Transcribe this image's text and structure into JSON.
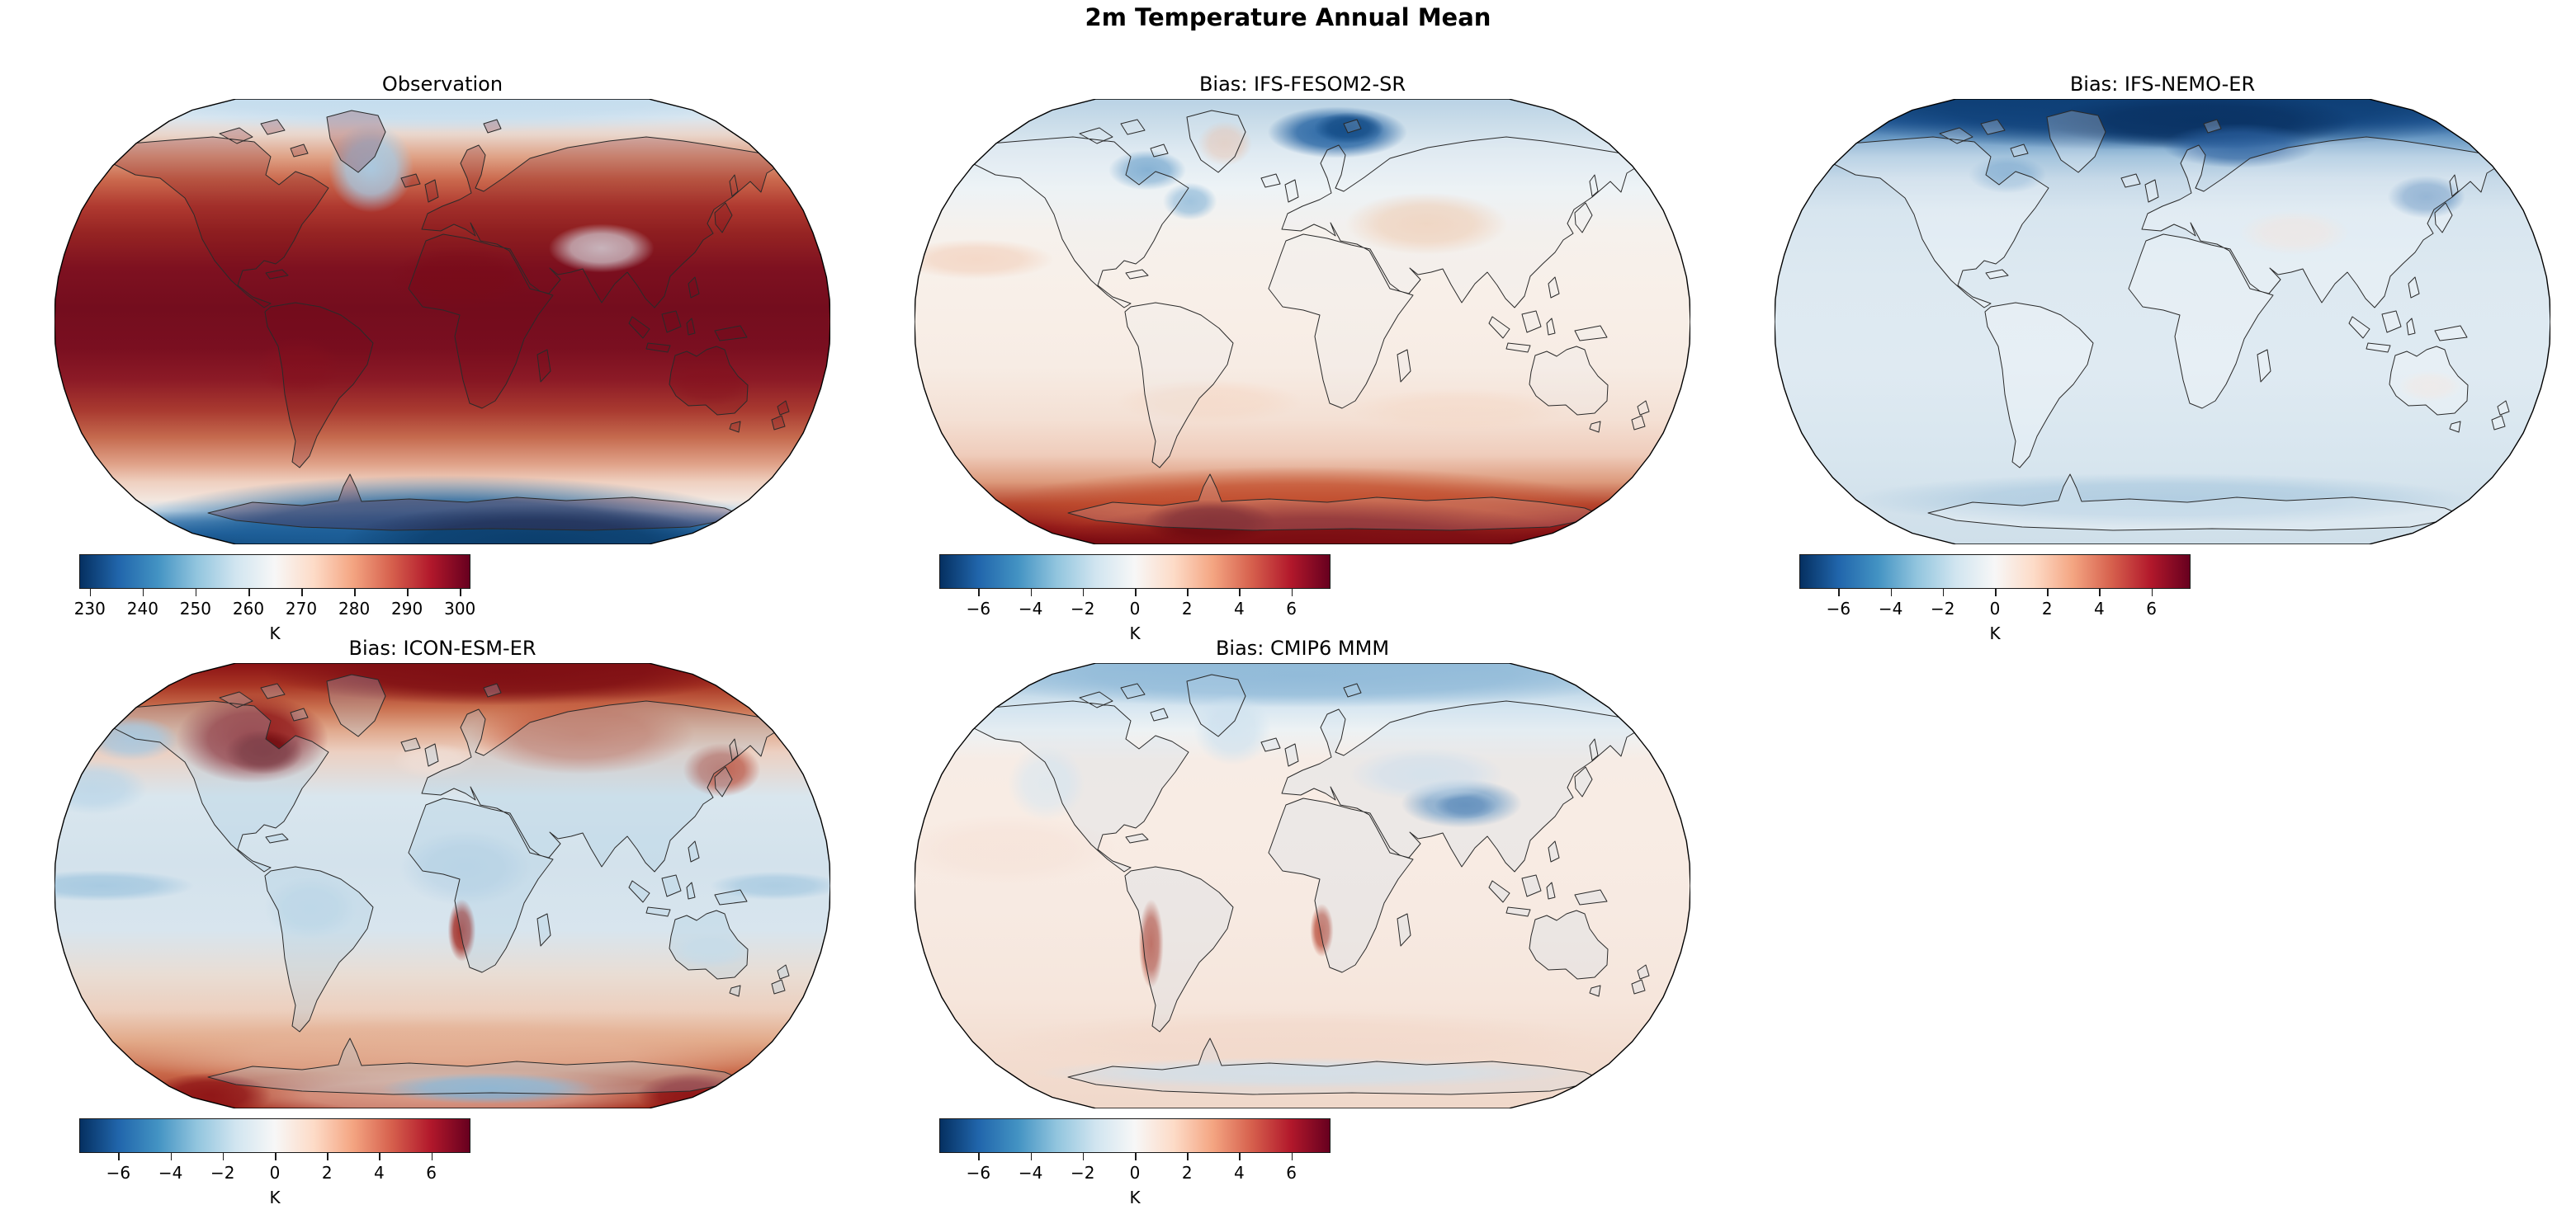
{
  "figure": {
    "title": "2m Temperature Annual Mean",
    "background_color": "#ffffff",
    "text_color": "#000000"
  },
  "colormap": {
    "name": "RdBu_r",
    "stops": [
      "#053061",
      "#2166ac",
      "#4393c3",
      "#92c5de",
      "#d1e5f0",
      "#f7f7f7",
      "#fddbc7",
      "#f4a582",
      "#d6604d",
      "#b2182b",
      "#67001f"
    ]
  },
  "chart_data": [
    {
      "type": "heatmap",
      "title": "Observation",
      "projection": "Robinson",
      "variable": "2m temperature annual mean",
      "units": "K",
      "row": 0,
      "col": 0,
      "colorbar": {
        "label": "K",
        "ticks": [
          230,
          240,
          250,
          260,
          270,
          280,
          290,
          300
        ],
        "tick_labels": [
          "230",
          "240",
          "250",
          "260",
          "270",
          "280",
          "290",
          "300"
        ],
        "range": [
          228,
          302
        ]
      },
      "pattern": "280-300 K tropics and subtropics (darkest over Sahara, Amazon, Australia), ~260-270 K high northern latitudes, cold Greenland interior and Tibetan Plateau, deep-blue Antarctica below 240 K",
      "shading": {
        "gradient": [
          [
            0,
            "#c9dfee"
          ],
          [
            0.04,
            "#dce8f1"
          ],
          [
            0.08,
            "#e9d6cc"
          ],
          [
            0.13,
            "#dfa286"
          ],
          [
            0.18,
            "#cb6a4e"
          ],
          [
            0.24,
            "#b03a30"
          ],
          [
            0.3,
            "#962423"
          ],
          [
            0.38,
            "#7e1120"
          ],
          [
            0.47,
            "#740d1e"
          ],
          [
            0.56,
            "#7a0f20"
          ],
          [
            0.63,
            "#8c1a26"
          ],
          [
            0.7,
            "#a93a30"
          ],
          [
            0.76,
            "#c56a4e"
          ],
          [
            0.82,
            "#e0a289"
          ],
          [
            0.86,
            "#efd0c0"
          ],
          [
            0.9,
            "#f3e6de"
          ],
          [
            0.925,
            "#cfe0ec"
          ],
          [
            0.95,
            "#5f93c0"
          ],
          [
            0.975,
            "#24629e"
          ],
          [
            1,
            "#0b3a68"
          ]
        ],
        "land_tint": [
          "#700818",
          0.22
        ],
        "blobs": [
          [
            0.408,
            0.155,
            0.055,
            0.1,
            "#a8cbe4",
            0.95
          ],
          [
            0.705,
            0.335,
            0.068,
            0.055,
            "#e4edf3",
            0.95
          ],
          [
            0.525,
            0.4,
            0.095,
            0.07,
            "#7a0a18",
            0.45
          ],
          [
            0.315,
            0.6,
            0.055,
            0.065,
            "#8c1220",
            0.4
          ],
          [
            0.845,
            0.64,
            0.055,
            0.05,
            "#8c1220",
            0.35
          ],
          [
            0.5,
            0.0,
            0.46,
            0.075,
            "#c3dcee",
            0.85
          ],
          [
            0.5,
            0.975,
            0.43,
            0.13,
            "#1c5e97",
            0.95
          ],
          [
            0.62,
            0.995,
            0.25,
            0.085,
            "#0b3d6b",
            0.95
          ]
        ]
      }
    },
    {
      "type": "heatmap",
      "title": "Bias: IFS-FESOM2-SR",
      "projection": "Robinson",
      "variable": "2m temperature bias vs observation",
      "units": "K",
      "row": 0,
      "col": 1,
      "colorbar": {
        "label": "K",
        "ticks": [
          -6,
          -4,
          -2,
          0,
          2,
          4,
          6
        ],
        "tick_labels": [
          "−6",
          "−4",
          "−2",
          "0",
          "2",
          "4",
          "6"
        ],
        "range": [
          -7.5,
          7.5
        ]
      },
      "pattern": "near-zero bias over most oceans and land, cold bias (-4 to -7 K) over Barents/Kara Seas and Hudson Bay, weak warm bias over central Asia and subtropical oceans, strong warm bias (+5 to +7 K) over the Southern Ocean and Antarctica",
      "shading": {
        "gradient": [
          [
            0,
            "#b9d2e5"
          ],
          [
            0.06,
            "#ccdeea"
          ],
          [
            0.12,
            "#dfeaf2"
          ],
          [
            0.2,
            "#edf3f6"
          ],
          [
            0.3,
            "#f6f1ec"
          ],
          [
            0.45,
            "#f8efe8"
          ],
          [
            0.6,
            "#f7ece4"
          ],
          [
            0.72,
            "#f4e0d4"
          ],
          [
            0.8,
            "#efccbb"
          ],
          [
            0.86,
            "#dd9a7c"
          ],
          [
            0.91,
            "#b5442c"
          ],
          [
            0.96,
            "#8c1216"
          ],
          [
            1,
            "#7a0c12"
          ]
        ],
        "land_tint": [
          "#e8f0f6",
          0.18
        ],
        "blobs": [
          [
            0.545,
            0.075,
            0.09,
            0.058,
            "#1f5fa0",
            0.95
          ],
          [
            0.56,
            0.065,
            0.045,
            0.035,
            "#134b85",
            0.9
          ],
          [
            0.3,
            0.16,
            0.05,
            0.045,
            "#6fa3cc",
            0.8
          ],
          [
            0.355,
            0.23,
            0.035,
            0.042,
            "#8db8d8",
            0.8
          ],
          [
            0.4,
            0.1,
            0.035,
            0.05,
            "#e8b79c",
            0.55
          ],
          [
            0.66,
            0.28,
            0.105,
            0.07,
            "#f0c4a4",
            0.7
          ],
          [
            0.08,
            0.36,
            0.1,
            0.045,
            "#f3d3c0",
            0.8
          ],
          [
            0.38,
            0.68,
            0.12,
            0.05,
            "#f5d8c6",
            0.65
          ],
          [
            0.7,
            0.7,
            0.14,
            0.05,
            "#f5d8c6",
            0.55
          ],
          [
            0.5,
            0.92,
            0.4,
            0.095,
            "#c4502f",
            0.85
          ],
          [
            0.52,
            1.0,
            0.34,
            0.1,
            "#7a0c12",
            1.0
          ],
          [
            0.38,
            0.95,
            0.085,
            0.05,
            "#6d0a10",
            0.9
          ]
        ]
      }
    },
    {
      "type": "heatmap",
      "title": "Bias: IFS-NEMO-ER",
      "projection": "Robinson",
      "variable": "2m temperature bias vs observation",
      "units": "K",
      "row": 0,
      "col": 2,
      "colorbar": {
        "label": "K",
        "ticks": [
          -6,
          -4,
          -2,
          0,
          2,
          4,
          6
        ],
        "tick_labels": [
          "−6",
          "−4",
          "−2",
          "0",
          "2",
          "4",
          "6"
        ],
        "range": [
          -7.5,
          7.5
        ]
      },
      "pattern": "weak cold bias (-1 to -2 K) nearly everywhere, strong cold bias (below -6 K) across the entire Arctic, slightly stronger blue over northern continents, faint warm speckles over central Asia and Australia",
      "shading": {
        "gradient": [
          [
            0,
            "#10406f"
          ],
          [
            0.05,
            "#2a62a0"
          ],
          [
            0.09,
            "#6d9cc6"
          ],
          [
            0.13,
            "#a4c4dd"
          ],
          [
            0.18,
            "#c6d9e8"
          ],
          [
            0.25,
            "#d7e5ef"
          ],
          [
            0.4,
            "#dde9f1"
          ],
          [
            0.6,
            "#dfeaf2"
          ],
          [
            0.8,
            "#d8e6ef"
          ],
          [
            0.9,
            "#d3e2ec"
          ],
          [
            1,
            "#cfdfea"
          ]
        ],
        "land_tint": [
          "#ffffff",
          0.25
        ],
        "blobs": [
          [
            0.5,
            0.02,
            0.47,
            0.095,
            "#0e3f77",
            1.0
          ],
          [
            0.55,
            0.05,
            0.2,
            0.062,
            "#0a3263",
            0.95
          ],
          [
            0.6,
            0.105,
            0.1,
            0.05,
            "#2a5f9e",
            0.8
          ],
          [
            0.84,
            0.22,
            0.05,
            0.048,
            "#4d82b8",
            0.7
          ],
          [
            0.3,
            0.17,
            0.05,
            0.042,
            "#7fabd0",
            0.7
          ],
          [
            0.67,
            0.3,
            0.07,
            0.05,
            "#f0dcd2",
            0.55
          ],
          [
            0.845,
            0.645,
            0.042,
            0.035,
            "#f2e0d6",
            0.5
          ],
          [
            0.5,
            0.9,
            0.4,
            0.06,
            "#9cc0da",
            0.6
          ]
        ]
      }
    },
    {
      "type": "heatmap",
      "title": "Bias: ICON-ESM-ER",
      "projection": "Robinson",
      "variable": "2m temperature bias vs observation",
      "units": "K",
      "row": 1,
      "col": 0,
      "colorbar": {
        "label": "K",
        "ticks": [
          -6,
          -4,
          -2,
          0,
          2,
          4,
          6
        ],
        "tick_labels": [
          "−6",
          "−4",
          "−2",
          "0",
          "2",
          "4",
          "6"
        ],
        "range": [
          -7.5,
          7.5
        ]
      },
      "pattern": "strong warm bias (+5 to +7 K) over northern Canada, Greenland Sea and Siberian Arctic, warm Southern Ocean ring and Antarctic coast, cold bias over tropical land (Africa, South America, Australia), equatorial Pacific and North Pacific, dark-red coastal streak off southwestern Africa",
      "shading": {
        "gradient": [
          [
            0,
            "#8a1114"
          ],
          [
            0.05,
            "#a83524"
          ],
          [
            0.1,
            "#c96f4e"
          ],
          [
            0.15,
            "#e0a88c"
          ],
          [
            0.2,
            "#ecd0c2"
          ],
          [
            0.3,
            "#d9e6ee"
          ],
          [
            0.45,
            "#d3e2ec"
          ],
          [
            0.6,
            "#d8e5ee"
          ],
          [
            0.7,
            "#e9ddd4"
          ],
          [
            0.78,
            "#eccfbe"
          ],
          [
            0.85,
            "#e2a988"
          ],
          [
            0.92,
            "#c9694a"
          ],
          [
            1,
            "#a32b1d"
          ]
        ],
        "land_tint": [
          "#aacde4",
          0.28
        ],
        "blobs": [
          [
            0.58,
            0.02,
            0.31,
            0.075,
            "#7e0f14",
            1.0
          ],
          [
            0.255,
            0.17,
            0.098,
            0.1,
            "#8c1215",
            0.95
          ],
          [
            0.27,
            0.2,
            0.05,
            0.05,
            "#6d0a0e",
            0.9
          ],
          [
            0.1,
            0.17,
            0.06,
            0.05,
            "#a7c9e2",
            0.9
          ],
          [
            0.05,
            0.28,
            0.07,
            0.06,
            "#b9d5e8",
            0.8
          ],
          [
            0.68,
            0.16,
            0.145,
            0.09,
            "#c4563a",
            0.7
          ],
          [
            0.86,
            0.24,
            0.05,
            0.06,
            "#b23c28",
            0.75
          ],
          [
            0.49,
            0.22,
            0.055,
            0.04,
            "#f0e0d8",
            0.7
          ],
          [
            0.53,
            0.46,
            0.085,
            0.085,
            "#b9d3e6",
            0.75
          ],
          [
            0.33,
            0.55,
            0.06,
            0.07,
            "#c2dae9",
            0.75
          ],
          [
            0.06,
            0.5,
            0.12,
            0.035,
            "#9dc4de",
            0.8
          ],
          [
            0.93,
            0.5,
            0.085,
            0.032,
            "#9dc4de",
            0.7
          ],
          [
            0.525,
            0.6,
            0.018,
            0.07,
            "#9e1f16",
            0.9
          ],
          [
            0.845,
            0.645,
            0.052,
            0.04,
            "#cfe2ee",
            0.7
          ],
          [
            0.5,
            0.88,
            0.42,
            0.08,
            "#e5b49a",
            0.8
          ],
          [
            0.5,
            0.97,
            0.3,
            0.06,
            "#edc6b2",
            0.7
          ],
          [
            0.56,
            0.955,
            0.14,
            0.035,
            "#7fb0d4",
            0.9
          ],
          [
            0.2,
            0.97,
            0.08,
            0.05,
            "#8c1215",
            0.9
          ],
          [
            0.82,
            0.97,
            0.07,
            0.05,
            "#8c1215",
            0.9
          ]
        ]
      }
    },
    {
      "type": "heatmap",
      "title": "Bias: CMIP6 MMM",
      "projection": "Robinson",
      "variable": "2m temperature bias vs observation",
      "units": "K",
      "row": 1,
      "col": 1,
      "colorbar": {
        "label": "K",
        "ticks": [
          -6,
          -4,
          -2,
          0,
          2,
          4,
          6
        ],
        "tick_labels": [
          "−6",
          "−4",
          "−2",
          "0",
          "2",
          "4",
          "6"
        ],
        "range": [
          -7.5,
          7.5
        ]
      },
      "pattern": "small biases overall: weak warm bias over most oceans, mixed speckled land biases, cold bias over the Arctic, Greenland and especially the Tibetan Plateau, warm streaks along the Andes and southwestern African coast, light warm bias over the Southern Ocean",
      "shading": {
        "gradient": [
          [
            0,
            "#9dc2dc"
          ],
          [
            0.05,
            "#bad4e6"
          ],
          [
            0.1,
            "#d8e7f1"
          ],
          [
            0.15,
            "#edf2f4"
          ],
          [
            0.22,
            "#f7ece5"
          ],
          [
            0.35,
            "#f8ece4"
          ],
          [
            0.55,
            "#f7eae2"
          ],
          [
            0.75,
            "#f6e6dc"
          ],
          [
            0.88,
            "#f3ddd0"
          ],
          [
            1,
            "#f0d8ca"
          ]
        ],
        "land_tint": [
          "#c6dcec",
          0.22
        ],
        "blobs": [
          [
            0.5,
            0.03,
            0.46,
            0.07,
            "#8fb9d8",
            0.9
          ],
          [
            0.41,
            0.15,
            0.05,
            0.08,
            "#cfe2ef",
            0.8
          ],
          [
            0.705,
            0.315,
            0.078,
            0.055,
            "#6796c2",
            0.9
          ],
          [
            0.71,
            0.32,
            0.04,
            0.03,
            "#4a7cb0",
            0.9
          ],
          [
            0.66,
            0.25,
            0.1,
            0.06,
            "#cfe0ee",
            0.7
          ],
          [
            0.17,
            0.27,
            0.05,
            0.085,
            "#d8e7f1",
            0.7
          ],
          [
            0.12,
            0.42,
            0.14,
            0.08,
            "#f6e2d8",
            0.7
          ],
          [
            0.305,
            0.63,
            0.016,
            0.1,
            "#b23c28",
            0.85
          ],
          [
            0.525,
            0.6,
            0.015,
            0.06,
            "#b23c28",
            0.8
          ],
          [
            0.5,
            0.85,
            0.4,
            0.07,
            "#f2d8ca",
            0.7
          ],
          [
            0.5,
            0.92,
            0.35,
            0.035,
            "#cfe2ef",
            0.7
          ]
        ]
      }
    }
  ],
  "layout_values": {
    "panel_columns_x": [
      0,
      1042,
      2084
    ],
    "panel_rows_y": [
      88,
      772
    ]
  }
}
